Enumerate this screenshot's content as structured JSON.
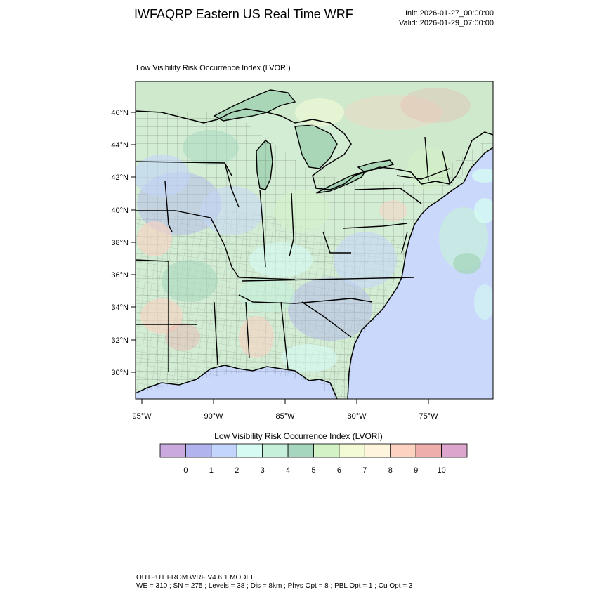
{
  "header": {
    "title": "IWFAQRP Eastern US Real Time WRF",
    "init": "Init: 2026-01-27_00:00:00",
    "valid": "Valid: 2026-01-29_07:00:00"
  },
  "map": {
    "subtitle": "Low Visibility Risk Occurrence Index   (LVORI)",
    "lat_labels": [
      "46°N",
      "44°N",
      "42°N",
      "40°N",
      "38°N",
      "36°N",
      "34°N",
      "32°N",
      "30°N"
    ],
    "lon_labels": [
      "95°W",
      "90°W",
      "85°W",
      "80°W",
      "75°W"
    ],
    "colors": {
      "ocean": "#c9d8fb",
      "land_base": "#d3ecd4",
      "frame": "#000000"
    }
  },
  "colorbar": {
    "title": "Low Visibility Risk Occurrence Index  (LVORI)",
    "colors": [
      "#c9a9de",
      "#b0b3ee",
      "#c3d5fa",
      "#d6fbf3",
      "#c6f0da",
      "#a6d7be",
      "#d3f2c6",
      "#f3fbd6",
      "#fff4dc",
      "#fcd2c1",
      "#eeaeac",
      "#dba5cd"
    ],
    "labels": [
      "0",
      "1",
      "2",
      "3",
      "4",
      "5",
      "6",
      "7",
      "8",
      "9",
      "10"
    ]
  },
  "footer": {
    "line1": "OUTPUT FROM WRF V4.6.1 MODEL",
    "line2": "WE = 310 ; SN = 275 ; Levels = 38 ; Dis = 8km ; Phys Opt = 8 ; PBL Opt = 1 ; Cu Opt = 3"
  }
}
